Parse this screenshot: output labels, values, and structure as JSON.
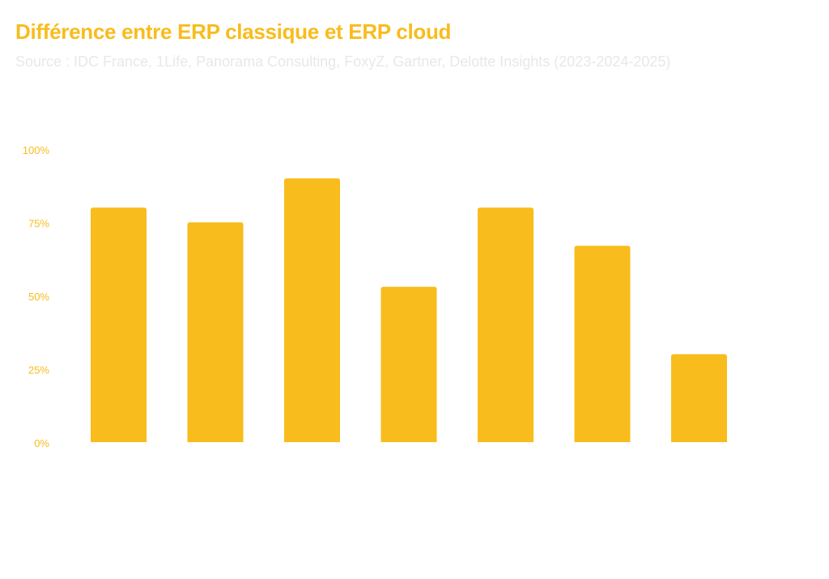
{
  "chart_data": {
    "type": "bar",
    "title": "Différence entre ERP classique et ERP cloud",
    "subtitle": "Source : IDC France, 1Life, Panorama Consulting, FoxyZ, Gartner, Delotte Insights (2023-2024-2025)",
    "categories": [
      "",
      "",
      "",
      "",
      "",
      "",
      ""
    ],
    "values": [
      80,
      75,
      90,
      53,
      80,
      67,
      30
    ],
    "xlabel": "",
    "ylabel": "",
    "ylim": [
      0,
      100
    ],
    "yticks": [
      "0%",
      "25%",
      "50%",
      "75%",
      "100%"
    ],
    "grid": false,
    "colors": {
      "bar": "#f8bc1c",
      "title": "#f8bc1c",
      "subtitle": "#e8e8e8"
    }
  }
}
